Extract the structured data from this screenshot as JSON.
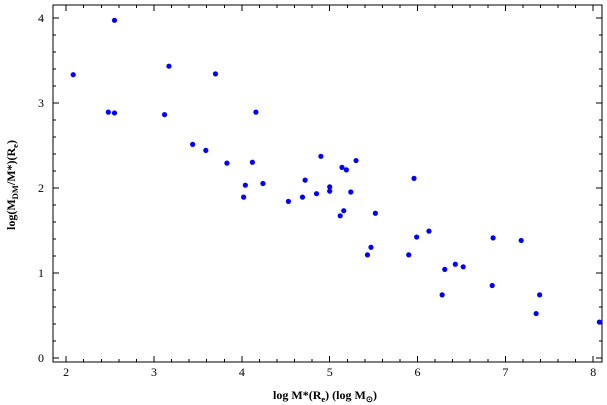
{
  "chart_data": {
    "type": "scatter",
    "title": "",
    "xlabel": {
      "base": "log M",
      "star": "*",
      "paren_open": "(R",
      "paren_sub": "e",
      "paren_close": ")",
      "unit_open": " (log M",
      "unit_sub": "⊙",
      "unit_close": ")"
    },
    "ylabel": {
      "prefix": "log(M",
      "sub1": "DM",
      "middle": "/M",
      "star": "*",
      "suffix": ")(R",
      "sub2": "e",
      "close": ")"
    },
    "xlim": [
      1.85,
      8.1
    ],
    "ylim": [
      -0.05,
      4.15
    ],
    "xticks": [
      "2",
      "3",
      "4",
      "5",
      "6",
      "7",
      "8"
    ],
    "yticks": [
      "0",
      "1",
      "2",
      "3",
      "4"
    ],
    "marker_color": "#0000ff",
    "points": [
      {
        "x": 2.08,
        "y": 3.33
      },
      {
        "x": 2.48,
        "y": 2.89
      },
      {
        "x": 2.55,
        "y": 2.88
      },
      {
        "x": 2.55,
        "y": 3.97
      },
      {
        "x": 3.12,
        "y": 2.86
      },
      {
        "x": 3.17,
        "y": 3.43
      },
      {
        "x": 3.44,
        "y": 2.51
      },
      {
        "x": 3.59,
        "y": 2.44
      },
      {
        "x": 3.7,
        "y": 3.34
      },
      {
        "x": 3.83,
        "y": 2.29
      },
      {
        "x": 4.02,
        "y": 1.89
      },
      {
        "x": 4.04,
        "y": 2.03
      },
      {
        "x": 4.12,
        "y": 2.3
      },
      {
        "x": 4.16,
        "y": 2.89
      },
      {
        "x": 4.24,
        "y": 2.05
      },
      {
        "x": 4.53,
        "y": 1.84
      },
      {
        "x": 4.69,
        "y": 1.89
      },
      {
        "x": 4.72,
        "y": 2.09
      },
      {
        "x": 4.85,
        "y": 1.93
      },
      {
        "x": 4.9,
        "y": 2.37
      },
      {
        "x": 5.0,
        "y": 1.96
      },
      {
        "x": 5.0,
        "y": 2.01
      },
      {
        "x": 5.12,
        "y": 1.67
      },
      {
        "x": 5.14,
        "y": 2.24
      },
      {
        "x": 5.16,
        "y": 1.73
      },
      {
        "x": 5.19,
        "y": 2.21
      },
      {
        "x": 5.24,
        "y": 1.95
      },
      {
        "x": 5.3,
        "y": 2.32
      },
      {
        "x": 5.43,
        "y": 1.21
      },
      {
        "x": 5.47,
        "y": 1.3
      },
      {
        "x": 5.52,
        "y": 1.7
      },
      {
        "x": 5.9,
        "y": 1.21
      },
      {
        "x": 5.96,
        "y": 2.11
      },
      {
        "x": 5.99,
        "y": 1.42
      },
      {
        "x": 6.13,
        "y": 1.49
      },
      {
        "x": 6.28,
        "y": 0.74
      },
      {
        "x": 6.31,
        "y": 1.04
      },
      {
        "x": 6.43,
        "y": 1.1
      },
      {
        "x": 6.52,
        "y": 1.07
      },
      {
        "x": 6.85,
        "y": 0.85
      },
      {
        "x": 6.86,
        "y": 1.41
      },
      {
        "x": 7.18,
        "y": 1.38
      },
      {
        "x": 7.35,
        "y": 0.52
      },
      {
        "x": 7.39,
        "y": 0.74
      },
      {
        "x": 8.07,
        "y": 0.42
      }
    ]
  }
}
